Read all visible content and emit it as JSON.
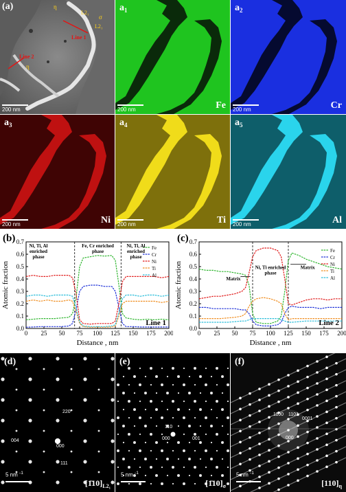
{
  "panels": {
    "a": {
      "label": "(a)",
      "scale": "200 nm",
      "annotations": [
        "η",
        "L2₁",
        "σ",
        "L2₁",
        "Line 1",
        "Line 2",
        "η"
      ]
    },
    "a1": {
      "label": "a",
      "sub": "1",
      "scale": "200 nm",
      "element": "Fe",
      "color": "#1fc41f"
    },
    "a2": {
      "label": "a",
      "sub": "2",
      "scale": "200 nm",
      "element": "Cr",
      "color": "#1a2fe0"
    },
    "a3": {
      "label": "a",
      "sub": "3",
      "scale": "200 nm",
      "element": "Ni",
      "color": "#e41414"
    },
    "a4": {
      "label": "a",
      "sub": "4",
      "scale": "200 nm",
      "element": "Ti",
      "color": "#e0cc12"
    },
    "a5": {
      "label": "a",
      "sub": "5",
      "scale": "200 nm",
      "element": "Al",
      "color": "#1cc6dd"
    }
  },
  "chart_data": [
    {
      "type": "line",
      "panel": "(b)",
      "xlabel": "Distance , nm",
      "ylabel": "Atomic fraction",
      "xlim": [
        0,
        200
      ],
      "ylim": [
        0,
        0.7
      ],
      "xticks": [
        0,
        25,
        50,
        75,
        100,
        125,
        150,
        175,
        200
      ],
      "yticks": [
        0.0,
        0.1,
        0.2,
        0.3,
        0.4,
        0.5,
        0.6,
        0.7
      ],
      "annotations": [
        "Ni, Ti, Al enriched phase",
        "Fe, Cr enriched phase",
        "Ni, Ti, Al enriched phase"
      ],
      "corner_label": "Line 1",
      "dividers": [
        68,
        133
      ],
      "legend_position": "top-right",
      "x": [
        0,
        10,
        20,
        30,
        40,
        50,
        60,
        65,
        70,
        75,
        80,
        90,
        100,
        110,
        120,
        125,
        130,
        135,
        140,
        150,
        160,
        170,
        180,
        190,
        200
      ],
      "series": [
        {
          "name": "Fe",
          "color": "#2db52d",
          "values": [
            0.07,
            0.075,
            0.08,
            0.08,
            0.08,
            0.085,
            0.09,
            0.12,
            0.25,
            0.5,
            0.57,
            0.58,
            0.59,
            0.585,
            0.59,
            0.55,
            0.35,
            0.12,
            0.085,
            0.075,
            0.07,
            0.075,
            0.07,
            0.075,
            0.07
          ]
        },
        {
          "name": "Cr",
          "color": "#1b2fd8",
          "values": [
            0.01,
            0.012,
            0.015,
            0.015,
            0.015,
            0.015,
            0.02,
            0.04,
            0.15,
            0.3,
            0.34,
            0.35,
            0.35,
            0.34,
            0.34,
            0.3,
            0.17,
            0.04,
            0.015,
            0.015,
            0.012,
            0.012,
            0.012,
            0.012,
            0.012
          ]
        },
        {
          "name": "Ni",
          "color": "#e01818",
          "values": [
            0.42,
            0.43,
            0.42,
            0.42,
            0.43,
            0.43,
            0.43,
            0.41,
            0.28,
            0.07,
            0.04,
            0.035,
            0.04,
            0.04,
            0.04,
            0.06,
            0.2,
            0.38,
            0.42,
            0.42,
            0.42,
            0.42,
            0.42,
            0.41,
            0.42
          ]
        },
        {
          "name": "Ti",
          "color": "#f08c1c",
          "values": [
            0.22,
            0.23,
            0.22,
            0.23,
            0.22,
            0.22,
            0.23,
            0.22,
            0.14,
            0.04,
            0.015,
            0.01,
            0.01,
            0.01,
            0.012,
            0.02,
            0.1,
            0.2,
            0.22,
            0.22,
            0.22,
            0.22,
            0.22,
            0.21,
            0.22
          ]
        },
        {
          "name": "Al",
          "color": "#27bcd9",
          "values": [
            0.26,
            0.27,
            0.27,
            0.26,
            0.27,
            0.27,
            0.27,
            0.26,
            0.17,
            0.05,
            0.02,
            0.015,
            0.015,
            0.015,
            0.02,
            0.03,
            0.13,
            0.24,
            0.27,
            0.27,
            0.26,
            0.27,
            0.27,
            0.26,
            0.27
          ]
        }
      ]
    },
    {
      "type": "line",
      "panel": "(c)",
      "xlabel": "Distance , nm",
      "ylabel": "Atomic fraction",
      "xlim": [
        0,
        200
      ],
      "ylim": [
        0,
        0.7
      ],
      "xticks": [
        0,
        25,
        50,
        75,
        100,
        125,
        150,
        175,
        200
      ],
      "yticks": [
        0.0,
        0.1,
        0.2,
        0.3,
        0.4,
        0.5,
        0.6,
        0.7
      ],
      "annotations": [
        "Matrix",
        "Ni, Ti enriched phase",
        "Matrix"
      ],
      "corner_label": "Line 2",
      "dividers": [
        75,
        125
      ],
      "legend_position": "right",
      "x": [
        0,
        10,
        20,
        30,
        40,
        50,
        60,
        65,
        70,
        75,
        80,
        90,
        100,
        110,
        115,
        120,
        125,
        130,
        140,
        150,
        160,
        170,
        180,
        190,
        200
      ],
      "series": [
        {
          "name": "Fe",
          "color": "#2db52d",
          "values": [
            0.48,
            0.47,
            0.47,
            0.46,
            0.46,
            0.45,
            0.44,
            0.43,
            0.35,
            0.12,
            0.05,
            0.04,
            0.04,
            0.06,
            0.1,
            0.3,
            0.55,
            0.61,
            0.59,
            0.56,
            0.54,
            0.52,
            0.5,
            0.49,
            0.48
          ]
        },
        {
          "name": "Cr",
          "color": "#1b2fd8",
          "values": [
            0.17,
            0.17,
            0.16,
            0.16,
            0.16,
            0.16,
            0.15,
            0.15,
            0.12,
            0.06,
            0.03,
            0.02,
            0.02,
            0.03,
            0.05,
            0.12,
            0.17,
            0.18,
            0.17,
            0.17,
            0.17,
            0.16,
            0.17,
            0.17,
            0.17
          ]
        },
        {
          "name": "Ni",
          "color": "#e01818",
          "values": [
            0.24,
            0.25,
            0.26,
            0.26,
            0.27,
            0.28,
            0.3,
            0.33,
            0.45,
            0.58,
            0.63,
            0.65,
            0.65,
            0.63,
            0.58,
            0.4,
            0.2,
            0.19,
            0.21,
            0.23,
            0.24,
            0.24,
            0.23,
            0.24,
            0.24
          ]
        },
        {
          "name": "Ti",
          "color": "#f08c1c",
          "values": [
            0.08,
            0.08,
            0.08,
            0.08,
            0.085,
            0.09,
            0.1,
            0.12,
            0.18,
            0.22,
            0.24,
            0.25,
            0.24,
            0.22,
            0.2,
            0.12,
            0.07,
            0.08,
            0.08,
            0.08,
            0.08,
            0.08,
            0.08,
            0.08,
            0.08
          ]
        },
        {
          "name": "Al",
          "color": "#27bcd9",
          "values": [
            0.05,
            0.05,
            0.05,
            0.05,
            0.05,
            0.055,
            0.06,
            0.06,
            0.07,
            0.08,
            0.08,
            0.08,
            0.08,
            0.08,
            0.07,
            0.06,
            0.05,
            0.05,
            0.055,
            0.06,
            0.06,
            0.06,
            0.06,
            0.06,
            0.06
          ]
        }
      ]
    }
  ],
  "diffraction": {
    "d": {
      "label": "(d)",
      "scale": "5 nm",
      "scale_unit": "-1",
      "spots": [
        "220",
        "004",
        "000",
        "111"
      ],
      "zone": "[1̄10]",
      "zone_sub": "L2₁"
    },
    "e": {
      "label": "(e)",
      "scale": "5 nm",
      "scale_unit": "-1",
      "spots": [
        "110",
        "000",
        "001"
      ],
      "zone": "[1̄10]",
      "zone_sub": "σ"
    },
    "f": {
      "label": "(f)",
      "scale": "5 nm",
      "scale_unit": "-1",
      "spots": [
        "1100",
        "1101",
        "0001",
        "000"
      ],
      "zone": "[110]",
      "zone_sub": "η"
    }
  }
}
